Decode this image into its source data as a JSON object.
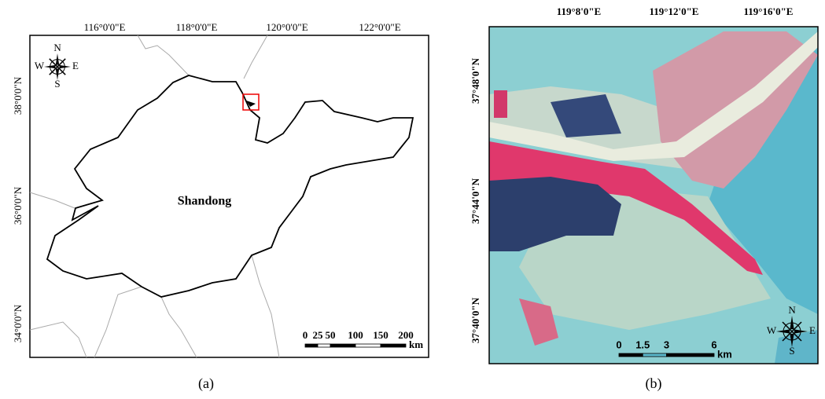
{
  "panel_a": {
    "lon_labels": [
      "116°0'0\"E",
      "118°0'0\"E",
      "120°0'0\"E",
      "122°0'0\"E"
    ],
    "lat_labels": [
      "38°0'0\"N",
      "36°0'0\"N",
      "34°0'0\"N"
    ],
    "region_label": "Shandong",
    "scale": {
      "ticks": [
        0,
        25,
        50,
        100,
        150,
        200
      ],
      "unit": "km"
    },
    "compass": {
      "n": "N",
      "e": "E",
      "s": "S",
      "w": "W"
    },
    "caption": "(a)"
  },
  "panel_b": {
    "lon_labels": [
      "119°8'0\"E",
      "119°12'0\"E",
      "119°16'0\"E"
    ],
    "lat_labels": [
      "37°48'0\"N",
      "37°44'0\"N",
      "37°40'0\"N"
    ],
    "scale": {
      "ticks": [
        0,
        1.5,
        3,
        6
      ],
      "unit": "km"
    },
    "compass": {
      "n": "N",
      "e": "E",
      "s": "S",
      "w": "W"
    },
    "caption": "(b)"
  }
}
